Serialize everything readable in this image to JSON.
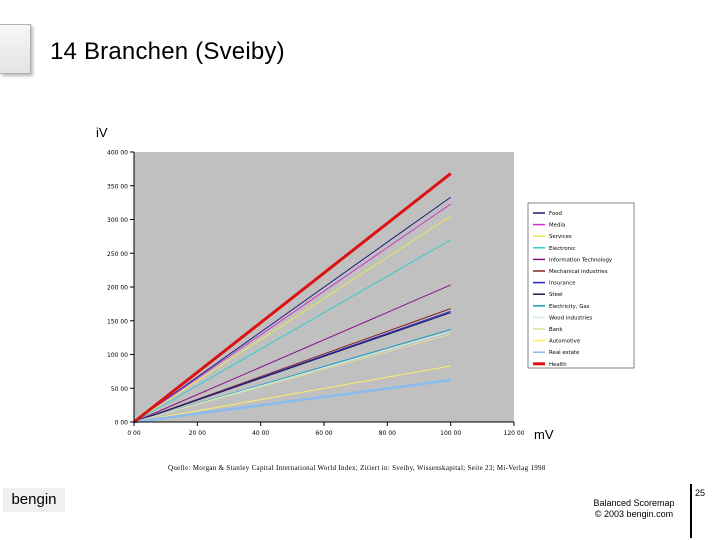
{
  "slide": {
    "title": "14 Branchen (Sveiby)",
    "source": "Quelle: Morgan & Stanley Capital International World Index; Zitiert in: Sveiby, Wissenskapital; Seite 23; Mi-Verlag 1998",
    "brand": "bengin",
    "footer_line1": "Balanced Scoremap",
    "footer_line2": "© 2003 bengin.com",
    "page_number": "25"
  },
  "chart_data": {
    "type": "line",
    "ylabel": "iV",
    "xlabel": "mV",
    "xlim": [
      0,
      120
    ],
    "ylim": [
      0,
      400
    ],
    "x_ticks": [
      "0 00",
      "20 00",
      "40 00",
      "60 00",
      "80 00",
      "100 00",
      "120 00"
    ],
    "y_ticks": [
      "0 00",
      "50 00",
      "100 00",
      "150 00",
      "200 00",
      "250 00",
      "300 00",
      "350 00",
      "400 00"
    ],
    "grid": false,
    "legend_position": "right",
    "series": [
      {
        "name": "Food",
        "color": "#1a1a7a",
        "x": [
          0,
          100
        ],
        "y": [
          0,
          333
        ]
      },
      {
        "name": "Media",
        "color": "#cc33cc",
        "x": [
          0,
          100
        ],
        "y": [
          0,
          323
        ]
      },
      {
        "name": "Services",
        "color": "#e6e65a",
        "x": [
          0,
          100
        ],
        "y": [
          0,
          305
        ]
      },
      {
        "name": "Electronic",
        "color": "#33cccc",
        "x": [
          0,
          100
        ],
        "y": [
          0,
          270
        ]
      },
      {
        "name": "Information Technology",
        "color": "#881188",
        "x": [
          0,
          100
        ],
        "y": [
          0,
          203
        ]
      },
      {
        "name": "Mechanical industries",
        "color": "#882222",
        "x": [
          0,
          100
        ],
        "y": [
          0,
          168
        ]
      },
      {
        "name": "Insurance",
        "color": "#2222cc",
        "x": [
          0,
          100
        ],
        "y": [
          0,
          164
        ]
      },
      {
        "name": "Steel",
        "color": "#1a1a5a",
        "x": [
          0,
          100
        ],
        "y": [
          0,
          162
        ]
      },
      {
        "name": "Electricity, Gas",
        "color": "#2299bb",
        "x": [
          0,
          100
        ],
        "y": [
          0,
          137
        ]
      },
      {
        "name": "Wood industries",
        "color": "#cceeee",
        "x": [
          0,
          100
        ],
        "y": [
          0,
          134
        ]
      },
      {
        "name": "Bank",
        "color": "#dddd99",
        "x": [
          0,
          100
        ],
        "y": [
          0,
          130
        ]
      },
      {
        "name": "Automotive",
        "color": "#ffee66",
        "x": [
          0,
          100
        ],
        "y": [
          0,
          83
        ]
      },
      {
        "name": "Real estate",
        "color": "#88bbee",
        "x": [
          0,
          100
        ],
        "y": [
          0,
          62
        ]
      },
      {
        "name": "Health",
        "color": "#dd1111",
        "x": [
          0,
          100
        ],
        "y": [
          0,
          368
        ]
      }
    ]
  }
}
